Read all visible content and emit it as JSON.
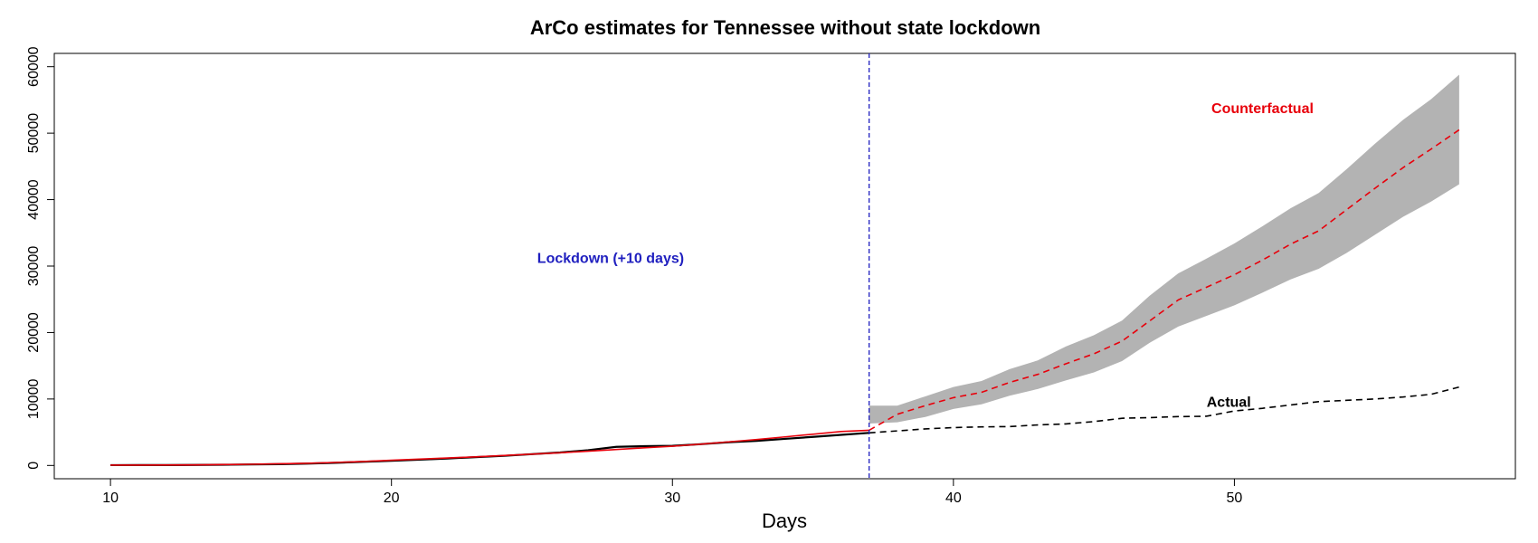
{
  "chart_data": {
    "type": "line",
    "title": "ArCo estimates for Tennessee without state lockdown",
    "xlabel": "Days",
    "ylabel": "",
    "xlim": [
      8,
      60
    ],
    "ylim": [
      -2000,
      62000
    ],
    "xticks": [
      10,
      20,
      30,
      40,
      50
    ],
    "yticks": [
      0,
      10000,
      20000,
      30000,
      40000,
      50000,
      60000
    ],
    "grid": false,
    "colors": {
      "actual": "#000000",
      "counterfactual": "#e8000b",
      "band": "#b3b3b3",
      "lockdown": "#1f1fbf"
    },
    "vline": {
      "x": 37,
      "label": "Lockdown (+10 days)"
    },
    "annotations": [
      {
        "text": "Counterfactual",
        "x": 51.0,
        "y": 53000,
        "color": "#e8000b"
      },
      {
        "text": "Actual",
        "x": 49.8,
        "y": 8800,
        "color": "#000000"
      },
      {
        "text": "Lockdown (+10 days)",
        "x": 27.8,
        "y": 30500,
        "color": "#1f1fbf"
      }
    ],
    "series": [
      {
        "name": "Actual",
        "x": [
          10,
          11,
          12,
          13,
          14,
          15,
          16,
          17,
          18,
          19,
          20,
          21,
          22,
          23,
          24,
          25,
          26,
          27,
          28,
          29,
          30,
          31,
          32,
          33,
          34,
          35,
          36,
          37,
          38,
          39,
          40,
          41,
          42,
          43,
          44,
          45,
          46,
          47,
          48,
          49,
          50,
          51,
          52,
          53,
          54,
          55,
          56,
          57,
          58
        ],
        "values": [
          50,
          55,
          60,
          80,
          110,
          150,
          200,
          280,
          400,
          550,
          700,
          870,
          1050,
          1250,
          1450,
          1700,
          1950,
          2300,
          2800,
          2900,
          2950,
          3200,
          3500,
          3700,
          4000,
          4300,
          4600,
          4900,
          5200,
          5500,
          5700,
          5800,
          5850,
          6100,
          6250,
          6600,
          7100,
          7200,
          7350,
          7400,
          8200,
          8600,
          9100,
          9600,
          9800,
          10000,
          10300,
          10700,
          11800
        ],
        "pre_style": "solid",
        "post_style": "dashed"
      },
      {
        "name": "Counterfactual",
        "x": [
          10,
          11,
          12,
          13,
          14,
          15,
          16,
          17,
          18,
          19,
          20,
          21,
          22,
          23,
          24,
          25,
          26,
          27,
          28,
          29,
          30,
          31,
          32,
          33,
          34,
          35,
          36,
          37,
          38,
          39,
          40,
          41,
          42,
          43,
          44,
          45,
          46,
          47,
          48,
          49,
          50,
          51,
          52,
          53,
          54,
          55,
          56,
          57,
          58
        ],
        "values": [
          50,
          55,
          65,
          90,
          130,
          180,
          250,
          330,
          450,
          600,
          780,
          950,
          1120,
          1300,
          1500,
          1700,
          1900,
          2150,
          2400,
          2650,
          2900,
          3200,
          3550,
          3900,
          4300,
          4700,
          5100,
          5300,
          7700,
          9000,
          10200,
          11000,
          12500,
          13700,
          15300,
          16800,
          18700,
          21800,
          24900,
          26800,
          28700,
          30900,
          33300,
          35300,
          38500,
          41700,
          44800,
          47600,
          50500
        ],
        "pre_style": "solid",
        "post_style": "dashed"
      }
    ],
    "band": {
      "name": "Counterfactual interval",
      "x": [
        37,
        38,
        39,
        40,
        41,
        42,
        43,
        44,
        45,
        46,
        47,
        48,
        49,
        50,
        51,
        52,
        53,
        54,
        55,
        56,
        57,
        58
      ],
      "lower": [
        6300,
        6500,
        7300,
        8500,
        9200,
        10500,
        11500,
        12800,
        14000,
        15700,
        18500,
        20900,
        22500,
        24100,
        26000,
        28000,
        29600,
        32000,
        34700,
        37400,
        39700,
        42300
      ],
      "upper": [
        9000,
        9000,
        10400,
        11800,
        12700,
        14500,
        15800,
        17900,
        19600,
        21800,
        25600,
        28900,
        31100,
        33400,
        36000,
        38700,
        41000,
        44600,
        48400,
        52000,
        55100,
        58800
      ]
    }
  }
}
